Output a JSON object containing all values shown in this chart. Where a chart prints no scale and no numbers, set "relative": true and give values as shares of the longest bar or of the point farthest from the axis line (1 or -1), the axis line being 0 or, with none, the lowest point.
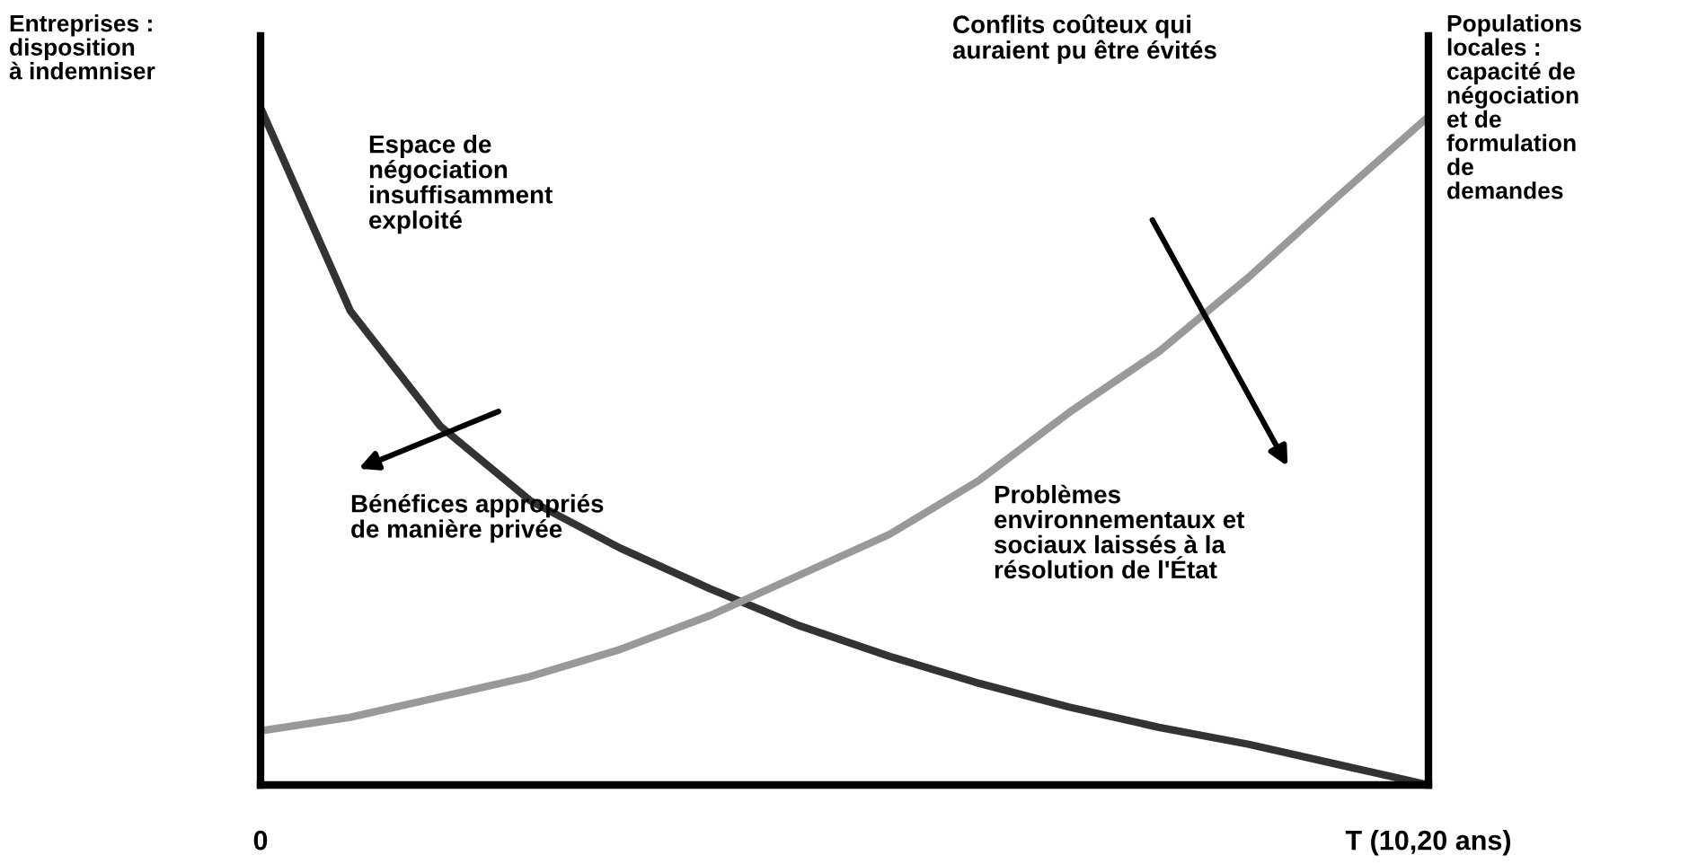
{
  "chart_data": {
    "type": "line",
    "relative": true,
    "ylabel": "Entreprises :\ndisposition\nà indemniser",
    "y2label": "Populations\nlocales :\ncapacité de\nnégociation\net de\nformulation\nde\ndemandes",
    "categories": [
      "0",
      null,
      null,
      null,
      null,
      null,
      null,
      null,
      null,
      null,
      null,
      null,
      null,
      "T (10,20 ans)"
    ],
    "annotations": [
      "Espace de\nnégociation\ninsuffisamment\nexploité",
      "Conflits coûteux qui\nauraient pu être évités",
      "Bénéfices appropriés\nde manière privée",
      "Problèmes\nenvironnementaux et\nsociaux laissés à la\nrésolution de l'État"
    ],
    "legend": false,
    "marker": "none",
    "line_style": "solid",
    "series": [
      {
        "color": "#333333",
        "values": [
          1,
          0.7,
          0.53,
          0.42,
          0.35,
          0.29,
          0.235,
          0.19,
          0.15,
          0.115,
          0.085,
          0.06,
          0.03,
          0
        ]
      },
      {
        "color": "#999999",
        "values": [
          0.08,
          0.1,
          0.13,
          0.16,
          0.2,
          0.25,
          0.31,
          0.37,
          0.45,
          0.55,
          0.64,
          0.75,
          0.87,
          0.987
        ]
      }
    ]
  }
}
